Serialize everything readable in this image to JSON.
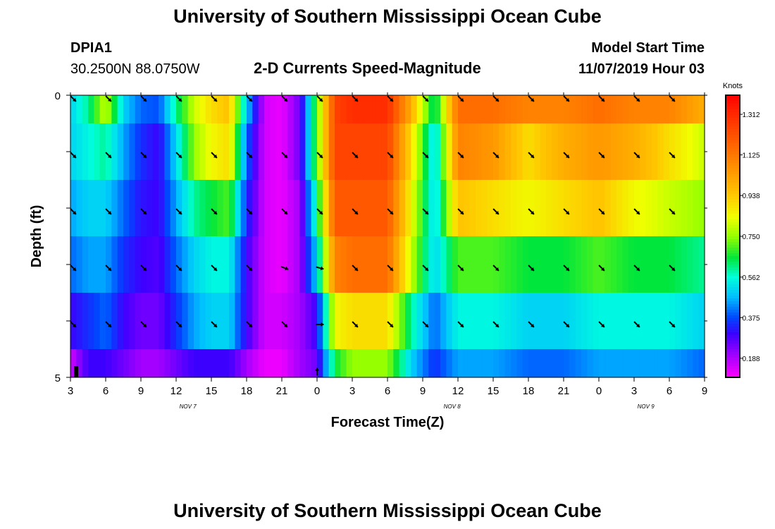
{
  "header": {
    "title": "University of Southern Mississippi Ocean Cube",
    "station": "DPIA1",
    "coords": "30.2500N 88.0750W",
    "subtitle": "2-D Currents Speed-Magnitude",
    "model_start_label": "Model Start Time",
    "model_start_value": "11/07/2019 Hour 03"
  },
  "footer": {
    "title": "University of Southern Mississippi Ocean Cube"
  },
  "chart_data": {
    "type": "heatmap",
    "title": "2-D Currents Speed-Magnitude",
    "xlabel": "Forecast Time(Z)",
    "ylabel": "Depth (ft)",
    "x_ticks": [
      "3",
      "6",
      "9",
      "12",
      "15",
      "18",
      "21",
      "0",
      "3",
      "6",
      "9",
      "12",
      "15",
      "18",
      "21",
      "0",
      "3",
      "6",
      "9"
    ],
    "x_range": [
      0,
      54
    ],
    "date_labels": [
      {
        "text": "NOV 7",
        "x": 10
      },
      {
        "text": "NOV 8",
        "x": 32.5
      },
      {
        "text": "NOV 9",
        "x": 49
      }
    ],
    "y_ticks": [
      "0",
      "5"
    ],
    "y_range": [
      0,
      5
    ],
    "colorbar": {
      "title": "Knots",
      "ticks": [
        "1.312",
        "1.125",
        "0.938",
        "0.750",
        "0.562",
        "0.375",
        "0.188"
      ],
      "tick_values": [
        1.312,
        1.125,
        0.938,
        0.75,
        0.562,
        0.375,
        0.188
      ],
      "range": [
        0.1,
        1.4
      ]
    },
    "depth_rows": [
      {
        "depth_band": [
          0,
          1
        ],
        "profile": [
          [
            0,
            0.5
          ],
          [
            1.5,
            0.6
          ],
          [
            3,
            0.8
          ],
          [
            4.5,
            0.5
          ],
          [
            6,
            0.4
          ],
          [
            7.5,
            0.38
          ],
          [
            9,
            0.6
          ],
          [
            10.5,
            0.8
          ],
          [
            12,
            0.9
          ],
          [
            13.5,
            0.95
          ],
          [
            15,
            0.5
          ],
          [
            16.5,
            0.15
          ],
          [
            18,
            0.12
          ],
          [
            19.5,
            0.25
          ],
          [
            21,
            0.7
          ],
          [
            22.5,
            1.25
          ],
          [
            24,
            1.3
          ],
          [
            27,
            1.3
          ],
          [
            29,
            1.0
          ],
          [
            31,
            0.6
          ],
          [
            33,
            1.15
          ],
          [
            36,
            1.15
          ],
          [
            39,
            1.1
          ],
          [
            42,
            1.1
          ],
          [
            45,
            1.15
          ],
          [
            48,
            1.1
          ],
          [
            51,
            1.1
          ],
          [
            54,
            1.0
          ]
        ]
      },
      {
        "depth_band": [
          1,
          2
        ],
        "profile": [
          [
            0,
            0.5
          ],
          [
            1.5,
            0.55
          ],
          [
            3,
            0.6
          ],
          [
            4.5,
            0.45
          ],
          [
            6,
            0.35
          ],
          [
            7.5,
            0.3
          ],
          [
            9,
            0.5
          ],
          [
            10.5,
            0.75
          ],
          [
            12,
            0.85
          ],
          [
            13.5,
            0.9
          ],
          [
            15,
            0.4
          ],
          [
            16.5,
            0.15
          ],
          [
            18,
            0.12
          ],
          [
            19.5,
            0.25
          ],
          [
            21,
            0.7
          ],
          [
            22.5,
            1.25
          ],
          [
            24,
            1.25
          ],
          [
            27,
            1.25
          ],
          [
            29,
            0.9
          ],
          [
            31,
            0.5
          ],
          [
            33,
            1.1
          ],
          [
            36,
            1.05
          ],
          [
            39,
            0.9
          ],
          [
            42,
            1.0
          ],
          [
            45,
            1.05
          ],
          [
            48,
            1.0
          ],
          [
            51,
            0.9
          ],
          [
            54,
            0.8
          ]
        ]
      },
      {
        "depth_band": [
          2,
          3
        ],
        "profile": [
          [
            0,
            0.45
          ],
          [
            1.5,
            0.5
          ],
          [
            3,
            0.5
          ],
          [
            4.5,
            0.4
          ],
          [
            6,
            0.32
          ],
          [
            7.5,
            0.3
          ],
          [
            9,
            0.45
          ],
          [
            10.5,
            0.6
          ],
          [
            12,
            0.65
          ],
          [
            13.5,
            0.7
          ],
          [
            15,
            0.35
          ],
          [
            16.5,
            0.15
          ],
          [
            18,
            0.12
          ],
          [
            19.5,
            0.2
          ],
          [
            21,
            0.6
          ],
          [
            22.5,
            1.2
          ],
          [
            24,
            1.2
          ],
          [
            27,
            1.2
          ],
          [
            29,
            0.85
          ],
          [
            31,
            0.5
          ],
          [
            33,
            0.95
          ],
          [
            36,
            0.9
          ],
          [
            39,
            0.85
          ],
          [
            42,
            0.9
          ],
          [
            45,
            0.95
          ],
          [
            48,
            0.85
          ],
          [
            51,
            0.8
          ],
          [
            54,
            0.75
          ]
        ]
      },
      {
        "depth_band": [
          3,
          4
        ],
        "profile": [
          [
            0,
            0.4
          ],
          [
            1.5,
            0.45
          ],
          [
            3,
            0.45
          ],
          [
            4.5,
            0.35
          ],
          [
            6,
            0.3
          ],
          [
            7.5,
            0.28
          ],
          [
            9,
            0.4
          ],
          [
            10.5,
            0.5
          ],
          [
            12,
            0.55
          ],
          [
            13.5,
            0.55
          ],
          [
            15,
            0.3
          ],
          [
            16.5,
            0.15
          ],
          [
            18,
            0.12
          ],
          [
            19.5,
            0.2
          ],
          [
            21,
            0.5
          ],
          [
            22.5,
            1.1
          ],
          [
            24,
            1.15
          ],
          [
            27,
            1.15
          ],
          [
            29,
            0.8
          ],
          [
            31,
            0.5
          ],
          [
            33,
            0.7
          ],
          [
            36,
            0.7
          ],
          [
            39,
            0.65
          ],
          [
            42,
            0.65
          ],
          [
            45,
            0.7
          ],
          [
            48,
            0.65
          ],
          [
            51,
            0.65
          ],
          [
            54,
            0.6
          ]
        ]
      },
      {
        "depth_band": [
          4,
          5
        ],
        "profile": [
          [
            0,
            0.3
          ],
          [
            1.5,
            0.35
          ],
          [
            3,
            0.4
          ],
          [
            4.5,
            0.3
          ],
          [
            6,
            0.25
          ],
          [
            7.5,
            0.25
          ],
          [
            9,
            0.35
          ],
          [
            10.5,
            0.45
          ],
          [
            12,
            0.5
          ],
          [
            13.5,
            0.5
          ],
          [
            15,
            0.3
          ],
          [
            16.5,
            0.15
          ],
          [
            18,
            0.15
          ],
          [
            19.5,
            0.2
          ],
          [
            21,
            0.3
          ],
          [
            22.5,
            0.85
          ],
          [
            24,
            0.9
          ],
          [
            27,
            0.9
          ],
          [
            29,
            0.6
          ],
          [
            31,
            0.4
          ],
          [
            33,
            0.55
          ],
          [
            36,
            0.55
          ],
          [
            39,
            0.5
          ],
          [
            42,
            0.5
          ],
          [
            45,
            0.55
          ],
          [
            48,
            0.55
          ],
          [
            51,
            0.55
          ],
          [
            54,
            0.5
          ]
        ]
      },
      {
        "depth_band": [
          5,
          5.5
        ],
        "profile": [
          [
            0,
            0.15
          ],
          [
            1.5,
            0.3
          ],
          [
            3,
            0.3
          ],
          [
            4.5,
            0.25
          ],
          [
            6,
            0.2
          ],
          [
            7.5,
            0.2
          ],
          [
            9,
            0.25
          ],
          [
            10.5,
            0.3
          ],
          [
            12,
            0.3
          ],
          [
            13.5,
            0.3
          ],
          [
            15,
            0.2
          ],
          [
            16.5,
            0.12
          ],
          [
            18,
            0.12
          ],
          [
            19.5,
            0.2
          ],
          [
            21,
            0.25
          ],
          [
            22.5,
            0.65
          ],
          [
            24,
            0.75
          ],
          [
            27,
            0.75
          ],
          [
            29,
            0.5
          ],
          [
            31,
            0.35
          ],
          [
            33,
            0.45
          ],
          [
            36,
            0.45
          ],
          [
            39,
            0.4
          ],
          [
            42,
            0.4
          ],
          [
            45,
            0.45
          ],
          [
            48,
            0.45
          ],
          [
            51,
            0.45
          ],
          [
            54,
            0.4
          ]
        ]
      }
    ],
    "arrow_times": [
      0,
      3,
      6,
      9,
      12,
      15,
      18,
      21,
      24,
      27,
      30,
      33,
      36,
      39,
      42,
      45,
      48,
      51
    ],
    "arrow_rows": [
      {
        "depth": 0,
        "angles_deg": [
          45,
          45,
          45,
          45,
          45,
          45,
          45,
          45,
          45,
          45,
          45,
          45,
          45,
          45,
          45,
          45,
          45,
          45
        ]
      },
      {
        "depth": 1,
        "angles_deg": [
          45,
          45,
          45,
          45,
          45,
          45,
          45,
          45,
          45,
          45,
          45,
          45,
          45,
          45,
          45,
          45,
          45,
          45
        ]
      },
      {
        "depth": 2,
        "angles_deg": [
          45,
          45,
          45,
          45,
          45,
          45,
          45,
          45,
          45,
          45,
          45,
          45,
          45,
          45,
          45,
          45,
          45,
          45
        ]
      },
      {
        "depth": 3,
        "angles_deg": [
          45,
          45,
          45,
          45,
          45,
          45,
          20,
          15,
          45,
          45,
          45,
          45,
          45,
          45,
          45,
          45,
          45,
          45
        ]
      },
      {
        "depth": 4,
        "angles_deg": [
          45,
          45,
          45,
          45,
          45,
          45,
          45,
          0,
          45,
          45,
          45,
          45,
          45,
          45,
          45,
          45,
          45,
          45
        ]
      }
    ],
    "bottom_arrow": {
      "time": 21,
      "depth": 4.9,
      "angle_deg": -90
    }
  }
}
